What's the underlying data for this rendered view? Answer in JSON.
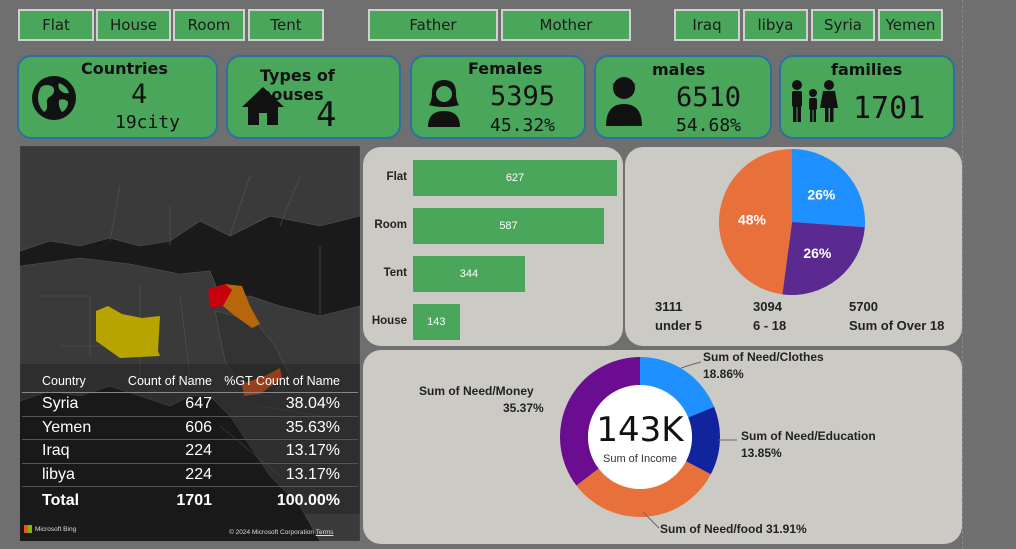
{
  "slicers": {
    "house_types": [
      "Flat",
      "House",
      "Room",
      "Tent"
    ],
    "parents": [
      "Father",
      "Mother"
    ],
    "countries": [
      "Iraq",
      "libya",
      "Syria",
      "Yemen"
    ]
  },
  "kpis": {
    "countries": {
      "title": "Countries",
      "value": "4",
      "sub": "19city"
    },
    "house_types": {
      "title": "Types of houses",
      "value": "4"
    },
    "females": {
      "title": "Females",
      "value": "5395",
      "pct": "45.32%"
    },
    "males": {
      "title": "males",
      "value": "6510",
      "pct": "54.68%"
    },
    "families": {
      "title": "families",
      "value": "1701"
    }
  },
  "map_table": {
    "headers": [
      "Country",
      "Count of Name",
      "%GT Count of Name"
    ],
    "rows": [
      {
        "country": "Syria",
        "count": "647",
        "pct": "38.04%"
      },
      {
        "country": "Yemen",
        "count": "606",
        "pct": "35.63%"
      },
      {
        "country": "Iraq",
        "count": "224",
        "pct": "13.17%"
      },
      {
        "country": "libya",
        "count": "224",
        "pct": "13.17%"
      }
    ],
    "total": {
      "label": "Total",
      "count": "1701",
      "pct": "100.00%"
    },
    "credit_bing": "Microsoft Bing",
    "credit_copyright": "© 2024 Microsoft Corporation",
    "credit_terms": "Terms"
  },
  "chart_data": [
    {
      "type": "bar",
      "orientation": "horizontal",
      "categories": [
        "Flat",
        "Room",
        "Tent",
        "House"
      ],
      "values": [
        627,
        587,
        344,
        143
      ],
      "color": "#4aa65a"
    },
    {
      "type": "pie",
      "labels": [
        "under 5",
        "6 - 18",
        "Sum of Over 18"
      ],
      "values": [
        3111,
        3094,
        5700
      ],
      "display_values": [
        "3111",
        "3094",
        "5700"
      ],
      "percent_labels": [
        "26%",
        "26%",
        "48%"
      ],
      "colors": [
        "#1e90ff",
        "#5b2a91",
        "#e8703a"
      ]
    },
    {
      "type": "pie",
      "subtype": "donut",
      "center_value": "143K",
      "center_label": "Sum of Income",
      "labels": [
        "Sum of Need/Clothes",
        "Sum of Need/Education",
        "Sum of Need/food",
        "Sum of Need/Money"
      ],
      "percents": [
        18.86,
        13.85,
        31.91,
        35.37
      ],
      "percent_labels": [
        "18.86%",
        "13.85%",
        "31.91%",
        "35.37%"
      ],
      "food_label": "Sum of Need/food 31.91%",
      "colors": [
        "#1e90ff",
        "#12239e",
        "#e8703a",
        "#6a0d91"
      ]
    }
  ],
  "colors": {
    "accent_green": "#4aa65a",
    "background": "#6f6f6f",
    "panel": "#cccac5"
  }
}
